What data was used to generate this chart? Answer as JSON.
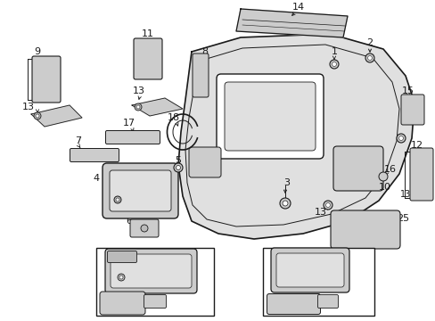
{
  "bg_color": "#ffffff",
  "line_color": "#1a1a1a",
  "fig_w": 4.89,
  "fig_h": 3.6,
  "dpi": 100,
  "label_fs": 8,
  "small_fs": 7
}
